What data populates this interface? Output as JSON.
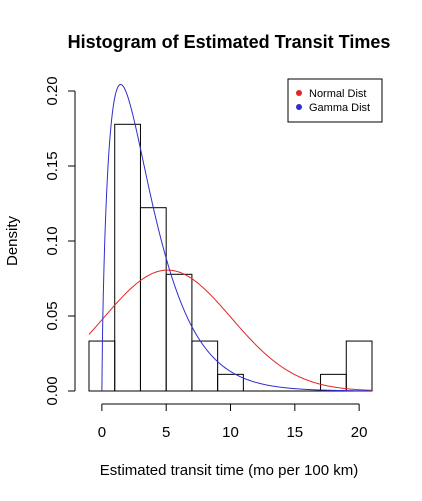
{
  "chart_data": {
    "type": "histogram",
    "title": "Histogram of Estimated Transit Times",
    "xlabel": "Estimated transit time (mo per 100 km)",
    "ylabel": "Density",
    "xlim": [
      -1,
      21
    ],
    "ylim": [
      0,
      0.2
    ],
    "x_ticks": [
      0,
      5,
      10,
      15,
      20
    ],
    "x_tick_labels": [
      "0",
      "5",
      "10",
      "15",
      "20"
    ],
    "y_ticks": [
      0,
      0.05,
      0.1,
      0.15,
      0.2
    ],
    "y_tick_labels": [
      "0.00",
      "0.05",
      "0.10",
      "0.15",
      "0.20"
    ],
    "bins": [
      {
        "x0": -1,
        "x1": 1,
        "density": 0.0333
      },
      {
        "x0": 1,
        "x1": 3,
        "density": 0.1778
      },
      {
        "x0": 3,
        "x1": 5,
        "density": 0.1222
      },
      {
        "x0": 5,
        "x1": 7,
        "density": 0.0778
      },
      {
        "x0": 7,
        "x1": 9,
        "density": 0.0333
      },
      {
        "x0": 9,
        "x1": 11,
        "density": 0.0111
      },
      {
        "x0": 11,
        "x1": 13,
        "density": 0
      },
      {
        "x0": 13,
        "x1": 15,
        "density": 0
      },
      {
        "x0": 15,
        "x1": 17,
        "density": 0
      },
      {
        "x0": 17,
        "x1": 19,
        "density": 0.0111
      },
      {
        "x0": 19,
        "x1": 21,
        "density": 0.0333
      }
    ],
    "series": [
      {
        "name": "Normal Dist",
        "color": "#e32626",
        "kind": "normal",
        "mean": 5.1,
        "sd": 4.95,
        "x_range": [
          -1,
          21
        ]
      },
      {
        "name": "Gamma Dist",
        "color": "#2e2ecc",
        "kind": "gamma",
        "shape": 1.7,
        "rate": 0.48,
        "x_range": [
          0,
          21
        ]
      }
    ],
    "legend": {
      "position": "top-right",
      "entries": [
        "Normal Dist",
        "Gamma Dist"
      ]
    },
    "grid": false
  }
}
